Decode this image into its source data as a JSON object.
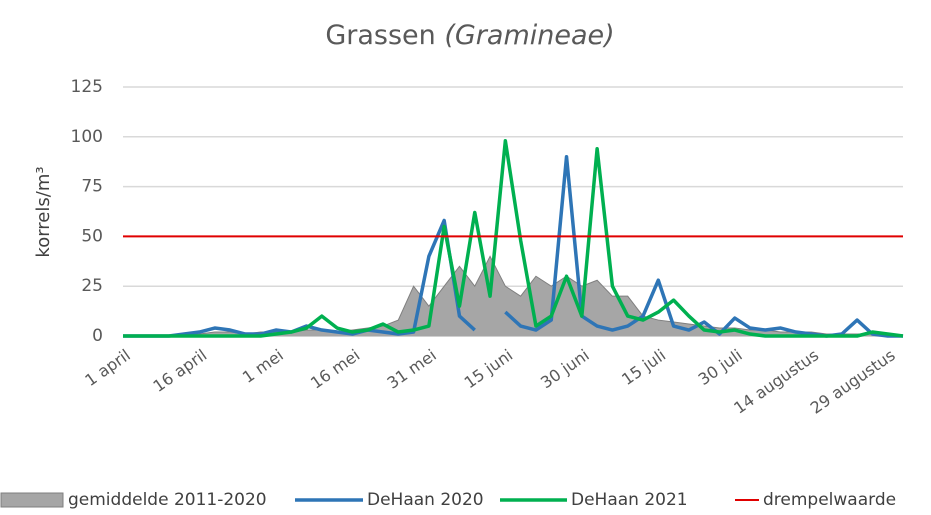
{
  "chart_data": {
    "type": "line",
    "title": "Grassen",
    "title_taxon": "(Gramineae)",
    "y_label": "korrels/m³",
    "categories": [
      "1 april",
      null,
      null,
      null,
      null,
      "16 april",
      null,
      null,
      null,
      null,
      "1 mei",
      null,
      null,
      null,
      null,
      "16 mei",
      null,
      null,
      null,
      null,
      "31 mei",
      null,
      null,
      null,
      null,
      "15 juni",
      null,
      null,
      null,
      null,
      "30 juni",
      null,
      null,
      null,
      null,
      "15 juli",
      null,
      null,
      null,
      null,
      "30 juli",
      null,
      null,
      null,
      null,
      "14 augustus",
      null,
      null,
      null,
      null,
      "29 augustus",
      null
    ],
    "ylim": [
      0,
      125
    ],
    "yticks": [
      0,
      25,
      50,
      75,
      100,
      125
    ],
    "grid": true,
    "series": [
      {
        "name": "gemiddelde 2011-2020",
        "color": "#a6a6a6",
        "style": "area",
        "values": [
          0,
          0,
          0,
          0,
          0,
          1,
          2,
          2,
          1,
          2,
          2,
          2,
          3,
          3,
          2,
          3,
          4,
          5,
          8,
          25,
          15,
          25,
          35,
          25,
          40,
          25,
          20,
          30,
          25,
          30,
          25,
          28,
          20,
          20,
          10,
          8,
          7,
          6,
          5,
          4,
          4,
          3,
          3,
          2,
          2,
          2,
          1,
          1,
          1,
          1,
          1,
          0
        ]
      },
      {
        "name": "DeHaan 2020",
        "color": "#2e75b6",
        "style": "line",
        "values": [
          0,
          0,
          0,
          0,
          1,
          2,
          4,
          3,
          1,
          1,
          3,
          2,
          5,
          3,
          2,
          1,
          3,
          2,
          1,
          2,
          40,
          58,
          10,
          3,
          null,
          12,
          5,
          3,
          8,
          90,
          10,
          5,
          3,
          5,
          10,
          28,
          5,
          3,
          7,
          1,
          9,
          4,
          3,
          4,
          2,
          1,
          0,
          1,
          8,
          1,
          0,
          0
        ]
      },
      {
        "name": "DeHaan 2021",
        "color": "#00b050",
        "style": "line",
        "values": [
          0,
          0,
          0,
          0,
          0,
          0,
          0,
          0,
          0,
          0,
          1,
          2,
          4,
          10,
          4,
          2,
          3,
          6,
          2,
          3,
          5,
          55,
          15,
          62,
          20,
          98,
          48,
          5,
          10,
          30,
          10,
          94,
          25,
          10,
          8,
          12,
          18,
          10,
          3,
          2,
          3,
          1,
          0,
          0,
          0,
          0,
          0,
          0,
          0,
          2,
          1,
          0
        ]
      }
    ],
    "threshold": {
      "name": "drempelwaarde",
      "color": "#e00000",
      "value": 50
    }
  }
}
